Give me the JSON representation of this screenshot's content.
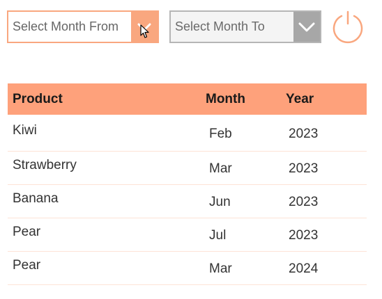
{
  "filters": {
    "month_from": {
      "placeholder": "Select Month From",
      "chevron_icon": "chevron-down-icon"
    },
    "month_to": {
      "placeholder": "Select Month To",
      "chevron_icon": "chevron-down-icon"
    },
    "reset_icon": "refresh-icon"
  },
  "table": {
    "columns": [
      "Product",
      "Month",
      "Year"
    ],
    "rows": [
      {
        "product": "Kiwi",
        "month": "Feb",
        "year": "2023"
      },
      {
        "product": "Strawberry",
        "month": "Mar",
        "year": "2023"
      },
      {
        "product": "Banana",
        "month": "Jun",
        "year": "2023"
      },
      {
        "product": "Pear",
        "month": "Jul",
        "year": "2023"
      },
      {
        "product": "Pear",
        "month": "Mar",
        "year": "2024"
      }
    ]
  },
  "colors": {
    "accent": "#fea17b",
    "accent_border": "#f9a77f",
    "disabled_border": "#b5b5b5",
    "disabled_button": "#a7a7a7",
    "row_divider": "#fde3d6"
  }
}
